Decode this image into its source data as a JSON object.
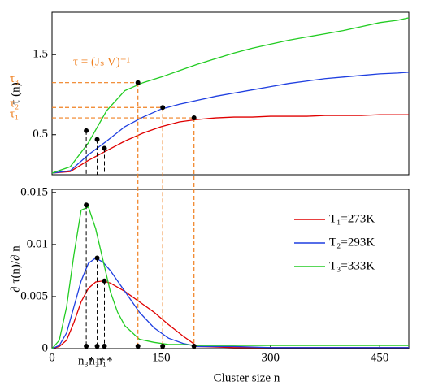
{
  "chart_data": [
    {
      "type": "line",
      "ylabel": "τ (n)",
      "x": [
        0,
        25,
        50,
        75,
        100,
        125,
        150,
        175,
        200,
        225,
        250,
        275,
        300,
        325,
        350,
        375,
        400,
        425,
        450,
        475,
        490
      ],
      "series": [
        {
          "color": "#e00000",
          "values": [
            0.02,
            0.04,
            0.18,
            0.3,
            0.42,
            0.52,
            0.6,
            0.66,
            0.69,
            0.71,
            0.72,
            0.72,
            0.73,
            0.73,
            0.73,
            0.74,
            0.74,
            0.74,
            0.75,
            0.75,
            0.75
          ]
        },
        {
          "color": "#1f3fe0",
          "values": [
            0.02,
            0.05,
            0.25,
            0.42,
            0.6,
            0.72,
            0.82,
            0.88,
            0.93,
            0.98,
            1.02,
            1.06,
            1.1,
            1.14,
            1.17,
            1.2,
            1.22,
            1.24,
            1.26,
            1.27,
            1.28
          ]
        },
        {
          "color": "#22cc22",
          "values": [
            0.02,
            0.1,
            0.4,
            0.8,
            1.05,
            1.15,
            1.22,
            1.3,
            1.38,
            1.45,
            1.52,
            1.58,
            1.63,
            1.68,
            1.72,
            1.76,
            1.8,
            1.85,
            1.9,
            1.93,
            1.96
          ]
        }
      ],
      "tangent_points": {
        "x": [
          47,
          62,
          72
        ],
        "y": [
          0.55,
          0.44,
          0.33
        ]
      },
      "guides": [
        {
          "x": 118,
          "y": 1.15,
          "label": "τ₃"
        },
        {
          "x": 152,
          "y": 0.84,
          "label": "τ₂"
        },
        {
          "x": 195,
          "y": 0.71,
          "label": "τ₁"
        }
      ],
      "annotation": "τ = (Jₛ V)⁻¹",
      "xlim": [
        0,
        490
      ],
      "ylim": [
        0,
        2.03
      ],
      "yticks": [
        0.5,
        1.5
      ]
    },
    {
      "type": "line",
      "ylabel": "∂ τ(n)/∂ n",
      "xlabel": "Cluster size n",
      "x": [
        0,
        10,
        20,
        30,
        40,
        50,
        60,
        70,
        80,
        90,
        100,
        120,
        140,
        160,
        180,
        200,
        250,
        300,
        400,
        490
      ],
      "series": [
        {
          "name": "T₁=273K",
          "color": "#e00000",
          "values": [
            0,
            0.0002,
            0.0008,
            0.0025,
            0.0045,
            0.0058,
            0.0064,
            0.0065,
            0.0063,
            0.0059,
            0.0055,
            0.0045,
            0.0035,
            0.0023,
            0.0012,
            0.0002,
            0.0001,
            0.0001,
            0.0001,
            0.0001
          ]
        },
        {
          "name": "T₂=293K",
          "color": "#1f3fe0",
          "values": [
            0,
            0.0003,
            0.0015,
            0.004,
            0.0065,
            0.0082,
            0.0087,
            0.0083,
            0.0075,
            0.0065,
            0.0055,
            0.0035,
            0.002,
            0.001,
            0.0005,
            0.0002,
            0.0002,
            0.0001,
            0.0001,
            0.0001
          ]
        },
        {
          "name": "T₃=333K",
          "color": "#22cc22",
          "values": [
            0,
            0.0008,
            0.004,
            0.009,
            0.0133,
            0.0136,
            0.0115,
            0.0085,
            0.0055,
            0.0035,
            0.0022,
            0.0009,
            0.0006,
            0.0004,
            0.0004,
            0.0003,
            0.0003,
            0.0003,
            0.0003,
            0.0003
          ]
        }
      ],
      "peaks": [
        {
          "x": 47,
          "y": 0.0138,
          "label": "n₃*"
        },
        {
          "x": 62,
          "y": 0.0087,
          "label": "n₂*"
        },
        {
          "x": 72,
          "y": 0.0065,
          "label": "n₁*"
        }
      ],
      "legend": "upper right",
      "xlim": [
        0,
        490
      ],
      "ylim": [
        0,
        0.0153
      ],
      "xticks": [
        0,
        150,
        300,
        450
      ],
      "yticks": [
        0,
        0.005,
        0.01,
        0.015
      ]
    }
  ]
}
